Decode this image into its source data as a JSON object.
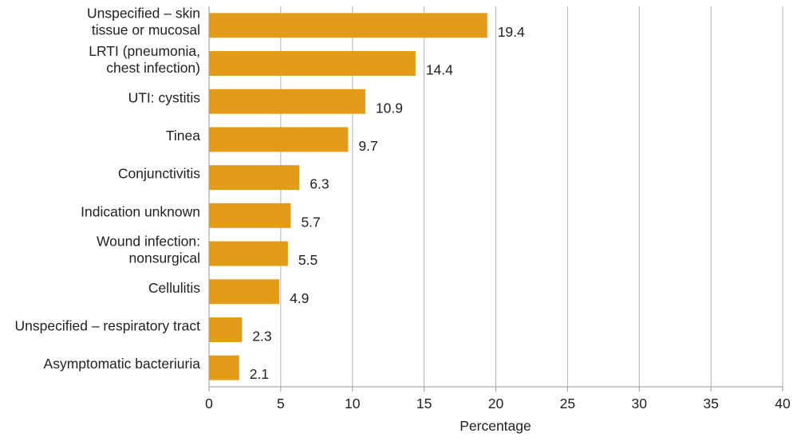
{
  "chart_data": {
    "type": "bar",
    "orientation": "horizontal",
    "title": "",
    "xlabel": "Percentage",
    "ylabel": "",
    "categories": [
      [
        "Unspecified – skin",
        "tissue or mucosal"
      ],
      [
        "LRTI (pneumonia,",
        "chest infection)"
      ],
      [
        "UTI: cystitis"
      ],
      [
        "Tinea"
      ],
      [
        "Conjunctivitis"
      ],
      [
        "Indication unknown"
      ],
      [
        "Wound infection:",
        "nonsurgical"
      ],
      [
        "Cellulitis"
      ],
      [
        "Unspecified – respiratory tract"
      ],
      [
        "Asymptomatic bacteriuria"
      ]
    ],
    "values": [
      19.4,
      14.4,
      10.9,
      9.7,
      6.3,
      5.7,
      5.5,
      4.9,
      2.3,
      2.1
    ],
    "value_labels": [
      "19.4",
      "14.4",
      "10.9",
      "9.7",
      "6.3",
      "5.7",
      "5.5",
      "4.9",
      "2.3",
      "2.1"
    ],
    "xlim": [
      0,
      40
    ],
    "xticks": [
      0,
      5,
      10,
      15,
      20,
      25,
      30,
      35,
      40
    ],
    "grid": "vertical",
    "legend": "none",
    "colors": {
      "bar": "#E39C19",
      "grid": "#b5b5b5",
      "axis": "#999999"
    }
  }
}
